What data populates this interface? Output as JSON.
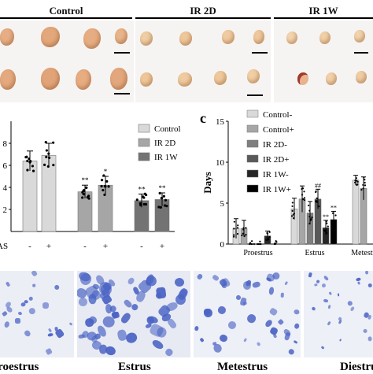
{
  "groups": {
    "control": "Control",
    "ir2d": "IR 2D",
    "ir1w": "IR 1W"
  },
  "panel_c_letter": "c",
  "micro_labels": [
    "Proestrus",
    "Estrus",
    "Metestrus",
    "Diestrus"
  ],
  "colors": {
    "control": "#d9d9d9",
    "ir2d": "#a6a6a6",
    "ir1w": "#737373",
    "c_control_minus": "#d9d9d9",
    "c_control_plus": "#a6a6a6",
    "c_ir2d_minus": "#7f7f7f",
    "c_ir2d_plus": "#595959",
    "c_ir1w_minus": "#262626",
    "c_ir1w_plus": "#000000",
    "stain": "#4a63c4",
    "ovary": "#e9b48a"
  },
  "chart_data": [
    {
      "type": "bar",
      "legend": [
        "Control",
        "IR 2D",
        "IR 1W"
      ],
      "legend_position": "top-right",
      "yticks": [
        "2",
        "4",
        "6",
        "8"
      ],
      "ylim": [
        0,
        10
      ],
      "x_row_label": "AS",
      "x_row_values": [
        "-",
        "+",
        "-",
        "+",
        "-",
        "+"
      ],
      "series": [
        {
          "name": "Control",
          "values": [
            6.4,
            6.9
          ],
          "errors": [
            0.9,
            1.1
          ],
          "significance": [
            "",
            ""
          ]
        },
        {
          "name": "IR 2D",
          "values": [
            3.6,
            4.2
          ],
          "errors": [
            0.6,
            0.8
          ],
          "significance": [
            "**",
            "*"
          ]
        },
        {
          "name": "IR 1W",
          "values": [
            2.8,
            2.9
          ],
          "errors": [
            0.6,
            0.6
          ],
          "significance": [
            "**",
            "**"
          ]
        }
      ]
    },
    {
      "type": "bar",
      "ylabel": "Days",
      "yticks": [
        "0",
        "5",
        "10",
        "15"
      ],
      "ylim": [
        0,
        15
      ],
      "categories": [
        "Proestrus",
        "Estrus",
        "Metestrus"
      ],
      "legend": [
        "Control-",
        "Control+",
        "IR 2D-",
        "IR 2D+",
        "IR 1W-",
        "IR 1W+"
      ],
      "legend_position": "top-left",
      "series": [
        {
          "name": "Control-",
          "values": [
            1.9,
            4.3,
            7.8
          ],
          "errors": [
            1.2,
            1.3,
            0.6
          ],
          "significance": [
            "",
            "",
            ""
          ]
        },
        {
          "name": "Control+",
          "values": [
            1.9,
            5.5,
            6.8
          ],
          "errors": [
            1.0,
            1.6,
            1.4
          ],
          "significance": [
            "",
            "",
            ""
          ]
        },
        {
          "name": "IR 2D-",
          "values": [
            0.0,
            3.8,
            null
          ],
          "errors": [
            0,
            1.4,
            null
          ],
          "significance": [
            "",
            "",
            ""
          ]
        },
        {
          "name": "IR 2D+",
          "values": [
            0.0,
            5.5,
            null
          ],
          "errors": [
            0,
            1.2,
            null
          ],
          "significance": [
            "",
            "##",
            ""
          ]
        },
        {
          "name": "IR 1W-",
          "values": [
            1.0,
            2.0,
            null
          ],
          "errors": [
            0.6,
            0.9,
            null
          ],
          "significance": [
            "",
            "**",
            ""
          ]
        },
        {
          "name": "IR 1W+",
          "values": [
            0.0,
            3.0,
            null
          ],
          "errors": [
            0,
            1.0,
            null
          ],
          "significance": [
            "",
            "**",
            ""
          ]
        }
      ]
    }
  ]
}
